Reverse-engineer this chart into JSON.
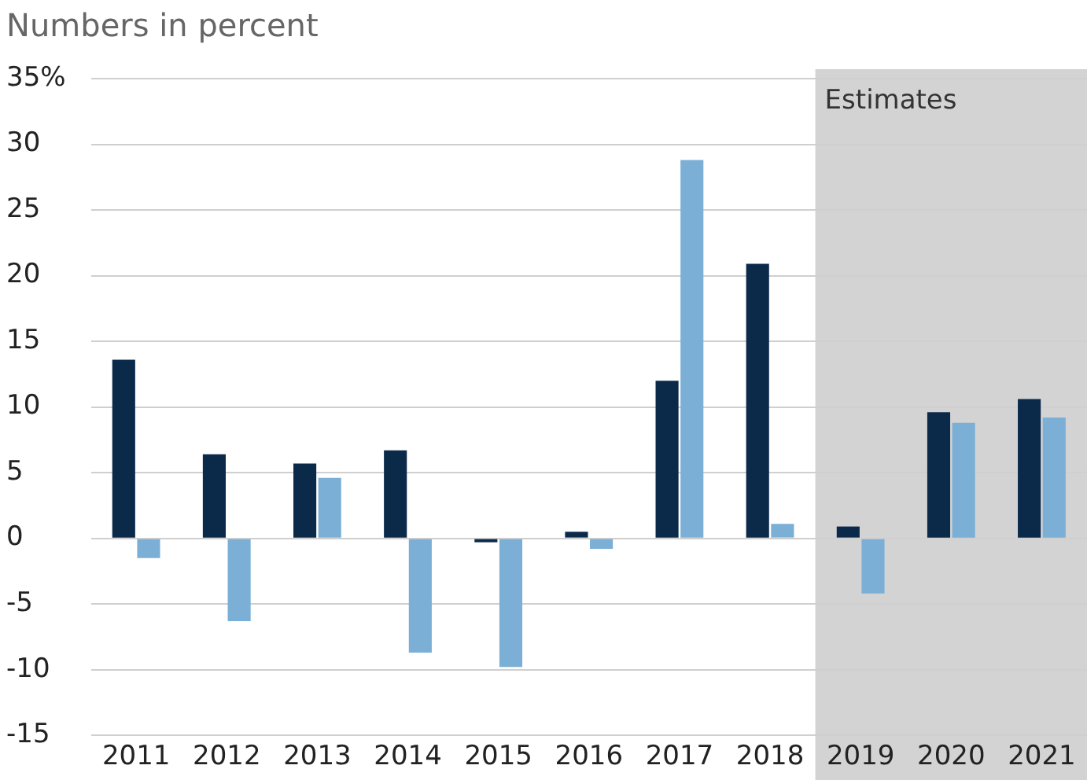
{
  "chart_data": {
    "type": "bar",
    "title": "Numbers in percent",
    "categories": [
      "2011",
      "2012",
      "2013",
      "2014",
      "2015",
      "2016",
      "2017",
      "2018",
      "2019",
      "2020",
      "2021"
    ],
    "series": [
      {
        "color": "#0b2a4a",
        "values": [
          13.6,
          6.4,
          5.7,
          6.7,
          -0.3,
          0.5,
          12.0,
          20.9,
          0.9,
          9.6,
          10.6
        ]
      },
      {
        "color": "#7bafd6",
        "values": [
          -1.5,
          -6.3,
          4.6,
          -8.7,
          -9.8,
          -0.8,
          28.8,
          1.1,
          -4.2,
          8.8,
          9.2
        ]
      }
    ],
    "ylim": [
      -15,
      35
    ],
    "yticks": [
      -15,
      -10,
      -5,
      0,
      5,
      10,
      15,
      20,
      25,
      30,
      {
        "value": 35,
        "label": "35%"
      }
    ],
    "grid": "y",
    "legend": false,
    "bands": [
      {
        "axis": "x",
        "from": "2019",
        "to": "2021",
        "label": "Estimates",
        "color": "#d3d3d3"
      }
    ]
  }
}
